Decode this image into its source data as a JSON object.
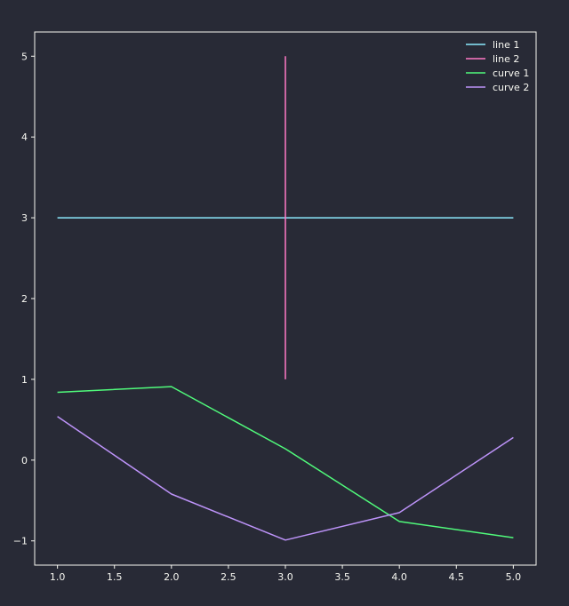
{
  "chart_data": {
    "type": "line",
    "title": "",
    "xlabel": "",
    "ylabel": "",
    "xlim": [
      0.8,
      5.2
    ],
    "ylim": [
      -1.3,
      5.3
    ],
    "grid": false,
    "legend_position": "top-right",
    "x_ticks": [
      1.0,
      1.5,
      2.0,
      2.5,
      3.0,
      3.5,
      4.0,
      4.5,
      5.0
    ],
    "x_tick_labels": [
      "1.0",
      "1.5",
      "2.0",
      "2.5",
      "3.0",
      "3.5",
      "4.0",
      "4.5",
      "5.0"
    ],
    "y_ticks": [
      -1,
      0,
      1,
      2,
      3,
      4,
      5
    ],
    "y_tick_labels": [
      "−1",
      "0",
      "1",
      "2",
      "3",
      "4",
      "5"
    ],
    "series": [
      {
        "name": "line 1",
        "color": "#8be9fd",
        "x": [
          1,
          5
        ],
        "y": [
          3,
          3
        ]
      },
      {
        "name": "line 2",
        "color": "#ff79c6",
        "x": [
          3,
          3
        ],
        "y": [
          1,
          5
        ]
      },
      {
        "name": "curve 1",
        "color": "#50fa7b",
        "x": [
          1,
          2,
          3,
          4,
          5
        ],
        "y": [
          0.84,
          0.91,
          0.14,
          -0.76,
          -0.96
        ]
      },
      {
        "name": "curve 2",
        "color": "#bd93f9",
        "x": [
          1,
          2,
          3,
          4,
          5
        ],
        "y": [
          0.54,
          -0.42,
          -0.99,
          -0.65,
          0.28
        ]
      }
    ]
  },
  "colors": {
    "background": "#282a36",
    "axis": "#f8f8f2"
  }
}
